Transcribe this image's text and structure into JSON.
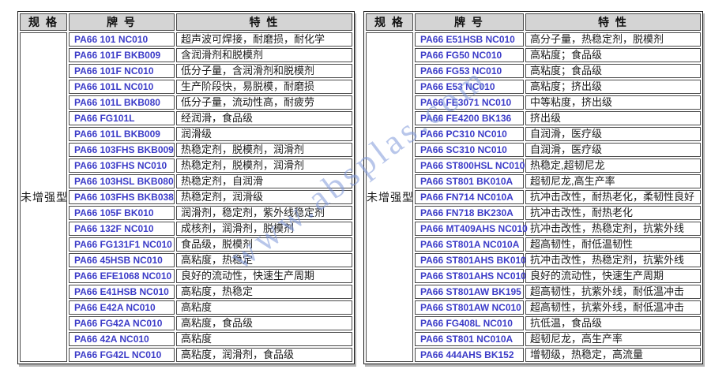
{
  "watermark": {
    "text": "www.absplas.com",
    "color": "#7d98d9"
  },
  "colors": {
    "grade_text": "#3c3cc8",
    "header_bg": "#d4d4d4",
    "cell_border": "#4a4a4a",
    "body_text": "#1a1a1a"
  },
  "tables": [
    {
      "id": "left",
      "spec": "未增强型",
      "headers": [
        "规 格",
        "牌 号",
        "特 性"
      ],
      "rows": [
        {
          "grade": "PA66 101 NC010",
          "traits": "超声波可焊接，耐磨损，耐化学"
        },
        {
          "grade": "PA66 101F BKB009",
          "traits": "含润滑剂和脱模剂"
        },
        {
          "grade": "PA66 101F NC010",
          "traits": "低分子量，含润滑剂和脱模剂"
        },
        {
          "grade": "PA66 101L NC010",
          "traits": "生产阶段快，易脱模，耐磨损"
        },
        {
          "grade": "PA66 101L BKB080",
          "traits": "低分子量，流动性高，耐疲劳"
        },
        {
          "grade": "PA66 FG101L",
          "traits": "经润滑，食品级"
        },
        {
          "grade": "PA66 101L BKB009",
          "traits": "润滑级"
        },
        {
          "grade": "PA66 103FHS BKB009",
          "traits": "热稳定剂，脱模剂，润滑剂"
        },
        {
          "grade": "PA66 103FHS NC010",
          "traits": "热稳定剂，脱模剂，润滑剂"
        },
        {
          "grade": "PA66 103HSL BKB080",
          "traits": "热稳定剂，自润滑"
        },
        {
          "grade": "PA66 103FHS BKB038",
          "traits": "热稳定剂，润滑级"
        },
        {
          "grade": "PA66 105F BK010",
          "traits": "润滑剂，稳定剂，紫外线稳定剂"
        },
        {
          "grade": "PA66 132F NC010",
          "traits": "成核剂，润滑剂，脱模剂"
        },
        {
          "grade": "PA66 FG131F1 NC010",
          "traits": "食品级，脱模剂"
        },
        {
          "grade": "PA66 45HSB NC010",
          "traits": "高粘度，热稳定"
        },
        {
          "grade": "PA66 EFE1068 NC010",
          "traits": "良好的流动性，快速生产周期"
        },
        {
          "grade": "PA66 E41HSB NC010",
          "traits": "高粘度，热稳定"
        },
        {
          "grade": "PA66 E42A NC010",
          "traits": "高粘度"
        },
        {
          "grade": "PA66 FG42A NC010",
          "traits": "高粘度，食品级"
        },
        {
          "grade": "PA66 42A NC010",
          "traits": "高粘度"
        },
        {
          "grade": "PA66 FG42L NC010",
          "traits": "高粘度，润滑剂，食品级"
        }
      ]
    },
    {
      "id": "right",
      "spec": "未增强型",
      "headers": [
        "规 格",
        "牌 号",
        "特 性"
      ],
      "rows": [
        {
          "grade": "PA66 E51HSB NC010",
          "traits": "高分子量，热稳定剂，脱模剂"
        },
        {
          "grade": "PA66 FG50 NC010",
          "traits": "高粘度；食品级"
        },
        {
          "grade": "PA66 FG53 NC010",
          "traits": "高粘度；食品级"
        },
        {
          "grade": "PA66 E53 NC010",
          "traits": "高粘度；挤出级"
        },
        {
          "grade": "PA66 FE3071 NC010",
          "traits": "中等粘度，挤出级"
        },
        {
          "grade": "PA66 FE4200 BK136",
          "traits": "挤出级"
        },
        {
          "grade": "PA66 PC310 NC010",
          "traits": "自润滑，医疗级"
        },
        {
          "grade": "PA66 SC310 NC010",
          "traits": "自润滑，医疗级"
        },
        {
          "grade": "PA66 ST800HSL NC010",
          "traits": "热稳定,超韧尼龙"
        },
        {
          "grade": "PA66 ST801 BK010A",
          "traits": "超韧尼龙,高生产率"
        },
        {
          "grade": "PA66 FN714 NC010A",
          "traits": "抗冲击改性，耐热老化，柔韧性良好"
        },
        {
          "grade": "PA66 FN718 BK230A",
          "traits": "抗冲击改性，耐热老化"
        },
        {
          "grade": "PA66 MT409AHS NC010",
          "traits": "抗冲击改性，热稳定剂，抗紫外线"
        },
        {
          "grade": "PA66 ST801A NC010A",
          "traits": "超高韧性，耐低温韧性"
        },
        {
          "grade": "PA66 ST801AHS BK010",
          "traits": "抗冲击改性，热稳定剂，抗紫外线"
        },
        {
          "grade": "PA66 ST801AHS NC010",
          "traits": "良好的流动性，快速生产周期"
        },
        {
          "grade": "PA66 ST801AW BK195",
          "traits": "超高韧性，抗紫外线，耐低温冲击"
        },
        {
          "grade": "PA66 ST801AW NC010",
          "traits": "超高韧性，抗紫外线，耐低温冲击"
        },
        {
          "grade": "PA66 FG408L NC010",
          "traits": "抗低温，食品级"
        },
        {
          "grade": "PA66 ST801 NC010A",
          "traits": "超韧尼龙，高生产率"
        },
        {
          "grade": "PA66 444AHS BK152",
          "traits": "增韧级，热稳定，高流量"
        }
      ]
    }
  ]
}
